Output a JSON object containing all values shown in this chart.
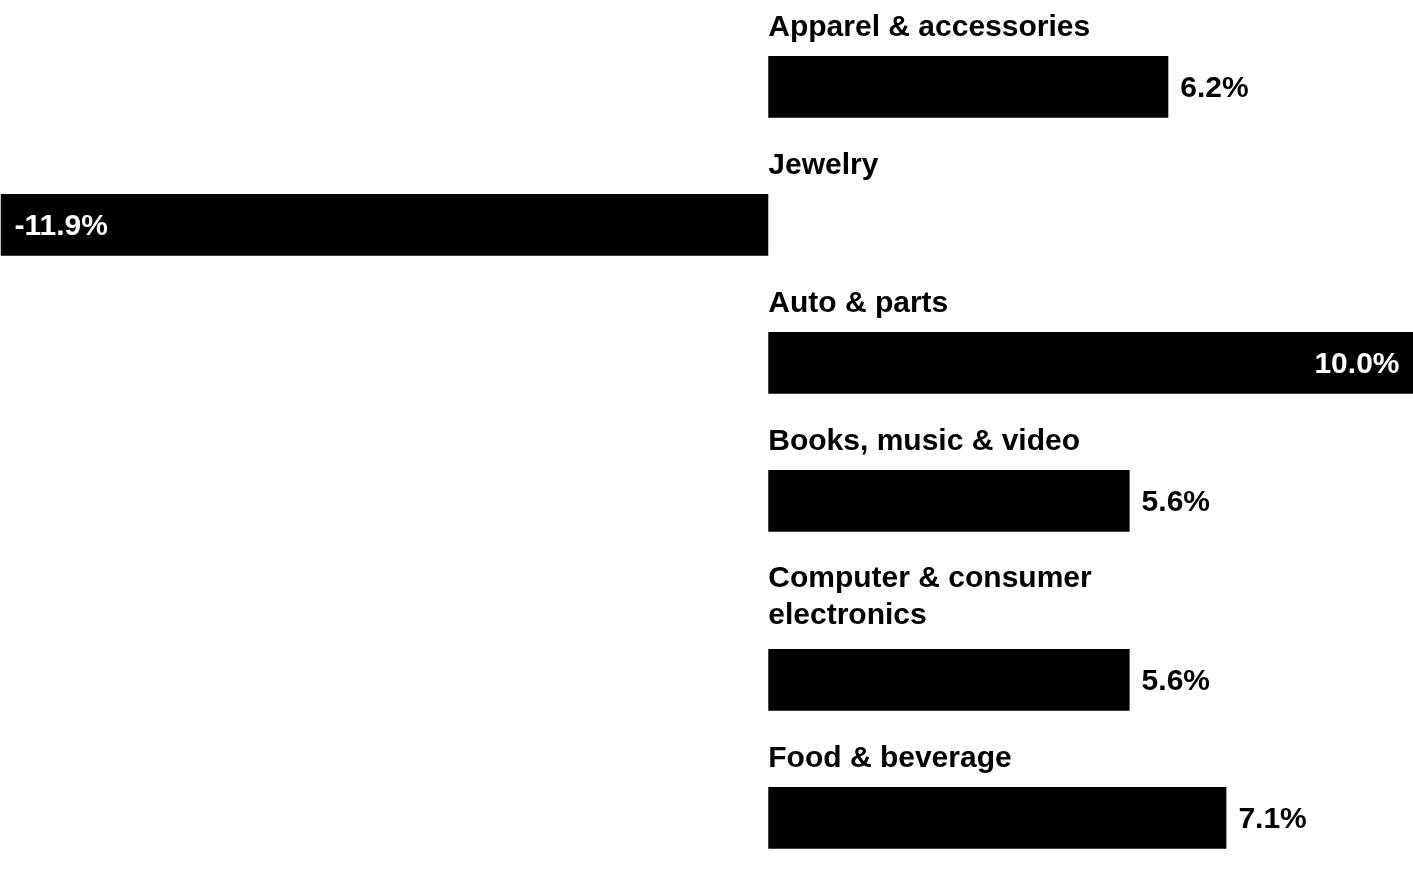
{
  "chart_data": {
    "type": "bar",
    "orientation": "horizontal",
    "categories": [
      "Apparel & accessories",
      "Jewelry",
      "Auto & parts",
      "Books, music & video",
      "Computer & consumer electronics",
      "Food & beverage"
    ],
    "values": [
      6.2,
      -11.9,
      10.0,
      5.6,
      5.6,
      7.1
    ],
    "value_labels": [
      "6.2%",
      "-11.9%",
      "10.0%",
      "5.6%",
      "5.6%",
      "7.1%"
    ],
    "color": "#000000"
  }
}
